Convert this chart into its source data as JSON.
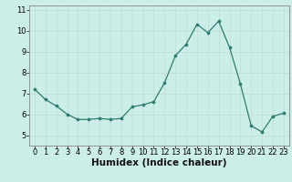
{
  "x": [
    0,
    1,
    2,
    3,
    4,
    5,
    6,
    7,
    8,
    9,
    10,
    11,
    12,
    13,
    14,
    15,
    16,
    17,
    18,
    19,
    20,
    21,
    22,
    23
  ],
  "y": [
    7.2,
    6.7,
    6.4,
    6.0,
    5.75,
    5.75,
    5.8,
    5.75,
    5.8,
    6.35,
    6.45,
    6.6,
    7.5,
    8.8,
    9.35,
    10.3,
    9.9,
    10.45,
    9.2,
    7.45,
    5.45,
    5.15,
    5.9,
    6.05
  ],
  "xlabel": "Humidex (Indice chaleur)",
  "xlim": [
    -0.5,
    23.5
  ],
  "ylim": [
    4.5,
    11.2
  ],
  "yticks": [
    5,
    6,
    7,
    8,
    9,
    10,
    11
  ],
  "xticks": [
    0,
    1,
    2,
    3,
    4,
    5,
    6,
    7,
    8,
    9,
    10,
    11,
    12,
    13,
    14,
    15,
    16,
    17,
    18,
    19,
    20,
    21,
    22,
    23
  ],
  "line_color": "#2e7d6e",
  "marker_color": "#2e7d6e",
  "bg_color": "#cceee8",
  "grid_color": "#c4deda",
  "axis_color": "#888888",
  "xlabel_fontsize": 7.5,
  "tick_fontsize": 6.0
}
